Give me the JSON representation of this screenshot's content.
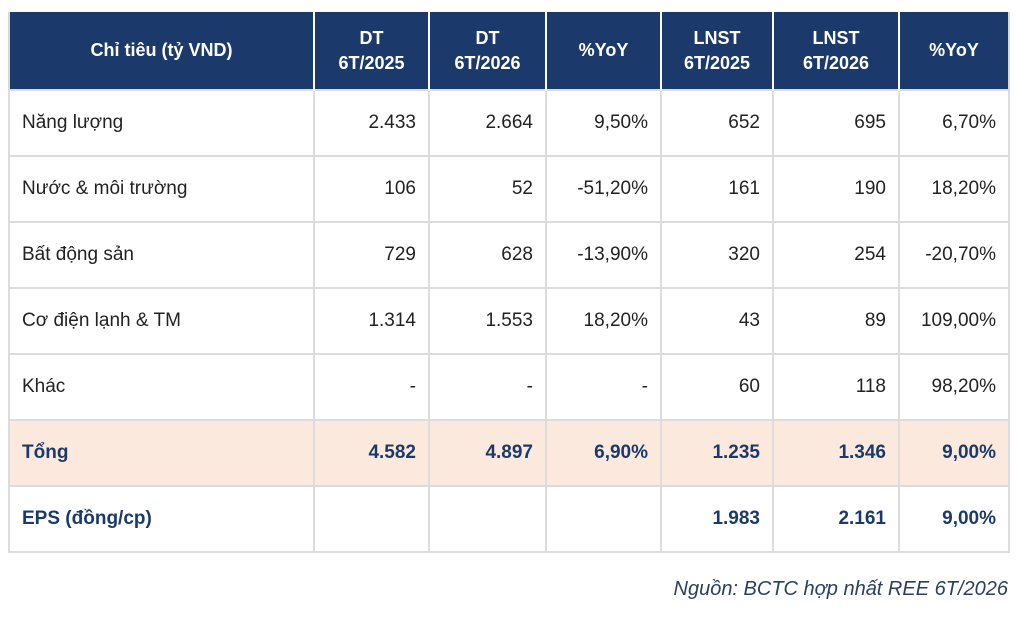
{
  "table": {
    "headers": [
      [
        "Chỉ tiêu (tỷ VND)"
      ],
      [
        "DT",
        "6T/2025"
      ],
      [
        "DT",
        "6T/2026"
      ],
      [
        "%YoY"
      ],
      [
        "LNST",
        "6T/2025"
      ],
      [
        "LNST",
        "6T/2026"
      ],
      [
        "%YoY"
      ]
    ],
    "rows": [
      [
        "Năng lượng",
        "2.433",
        "2.664",
        "9,50%",
        "652",
        "695",
        "6,70%"
      ],
      [
        "Nước & môi trường",
        "106",
        "52",
        "-51,20%",
        "161",
        "190",
        "18,20%"
      ],
      [
        "Bất động sản",
        "729",
        "628",
        "-13,90%",
        "320",
        "254",
        "-20,70%"
      ],
      [
        "Cơ điện lạnh & TM",
        "1.314",
        "1.553",
        "18,20%",
        "43",
        "89",
        "109,00%"
      ],
      [
        "Khác",
        "-",
        "-",
        "-",
        "60",
        "118",
        "98,20%"
      ]
    ],
    "total": [
      "Tổng",
      "4.582",
      "4.897",
      "6,90%",
      "1.235",
      "1.346",
      "9,00%"
    ],
    "eps": [
      "EPS (đồng/cp)",
      "",
      "",
      "",
      "1.983",
      "2.161",
      "9,00%"
    ]
  },
  "source": "Nguồn: BCTC hợp nhất REE 6T/2026",
  "colors": {
    "header_bg": "#1b3a6b",
    "total_bg": "#fbe9dd",
    "accent_text": "#1b3a6b"
  }
}
